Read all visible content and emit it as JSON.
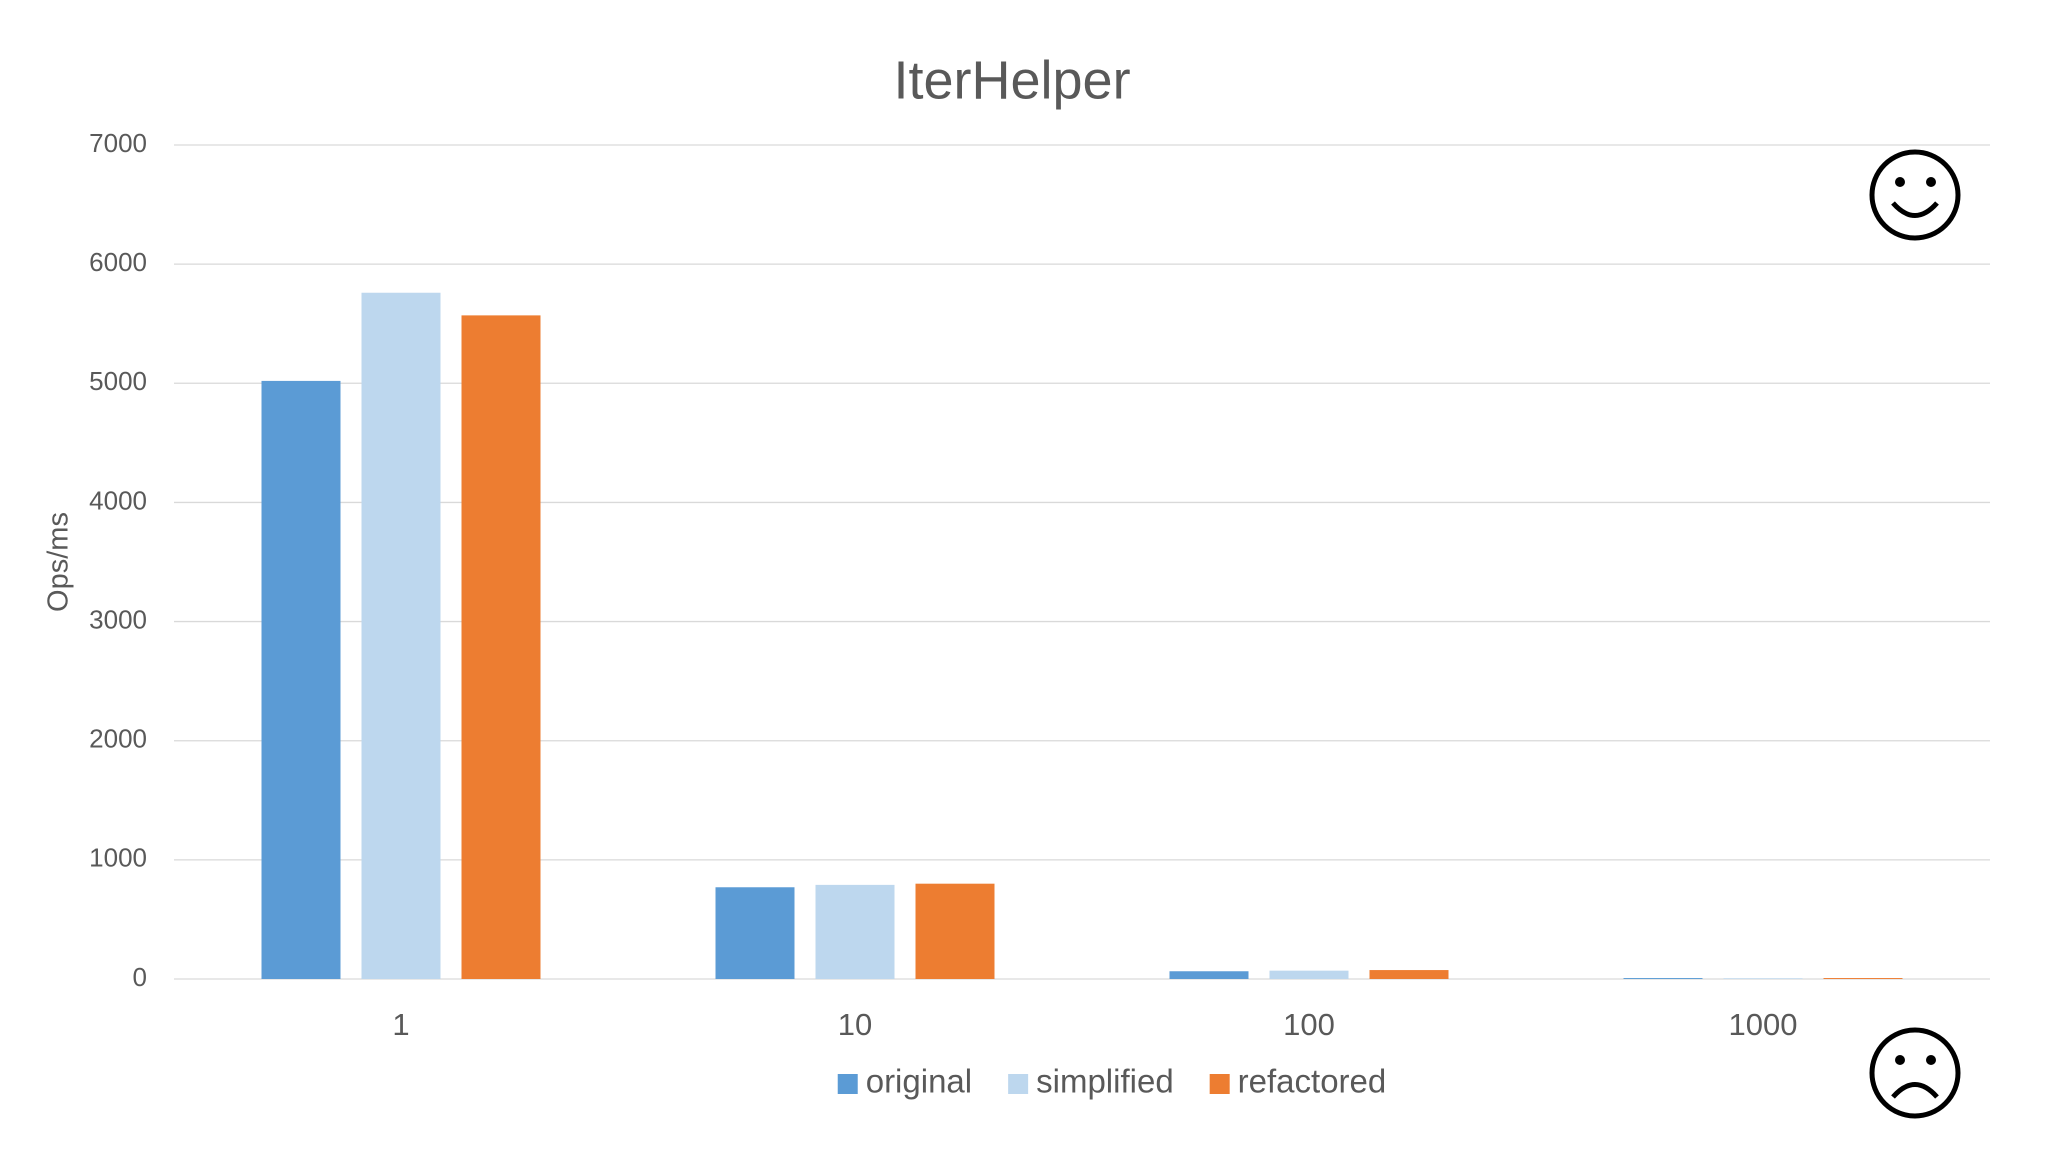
{
  "chart_data": {
    "type": "bar",
    "title": "IterHelper",
    "y_label": "Ops/ms",
    "categories": [
      "1",
      "10",
      "100",
      "1000"
    ],
    "series": [
      {
        "name": "original",
        "color": "#5b9bd5",
        "values": [
          5020,
          770,
          65,
          8
        ]
      },
      {
        "name": "simplified",
        "color": "#bdd7ee",
        "values": [
          5760,
          790,
          70,
          6
        ]
      },
      {
        "name": "refactored",
        "color": "#ed7d31",
        "values": [
          5570,
          800,
          75,
          8
        ]
      }
    ],
    "ylim": [
      0,
      7000
    ],
    "yticks": [
      0,
      1000,
      2000,
      3000,
      4000,
      5000,
      6000,
      7000
    ],
    "grid": true,
    "legend": "bottom"
  }
}
